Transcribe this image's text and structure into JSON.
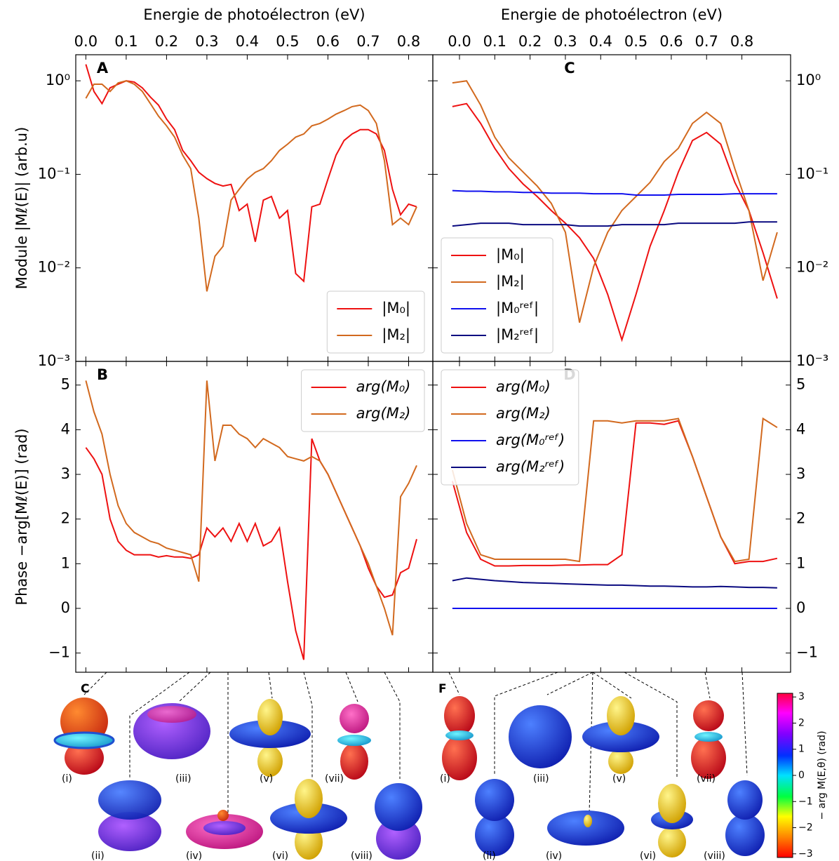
{
  "chart_data": [
    {
      "type": "line",
      "panel_label": "A",
      "xlabel": "Energie de photoélectron (eV)",
      "ylabel": "Module  |Mℓ(E)| (arb.u)",
      "xlim": [
        -0.025,
        0.86
      ],
      "xticks": [
        {
          "value": 0,
          "label": "0.0"
        },
        0.1,
        0.2,
        0.3,
        0.4,
        0.5,
        0.6,
        0.7,
        0.8
      ],
      "yscale": "log",
      "ylim": [
        0.001,
        1.9
      ],
      "yticks": [
        {
          "value": 1,
          "label": "10⁰"
        },
        {
          "value": 0.1,
          "label": "10⁻¹"
        },
        {
          "value": 0.01,
          "label": "10⁻²"
        },
        {
          "value": 0.001,
          "label": "10⁻³"
        }
      ],
      "legend": "lower right",
      "x": [
        0,
        0.02,
        0.04,
        0.06,
        0.08,
        0.1,
        0.12,
        0.14,
        0.16,
        0.18,
        0.2,
        0.22,
        0.24,
        0.26,
        0.28,
        0.3,
        0.32,
        0.34,
        0.36,
        0.38,
        0.4,
        0.42,
        0.44,
        0.46,
        0.48,
        0.5,
        0.52,
        0.54,
        0.56,
        0.58,
        0.6,
        0.62,
        0.64,
        0.66,
        0.68,
        0.7,
        0.72,
        0.74,
        0.76,
        0.78,
        0.8,
        0.82
      ],
      "series": [
        {
          "name": "|M₀|",
          "color": "#ee1111",
          "values": [
            1.5,
            0.77,
            0.57,
            0.84,
            0.92,
            1.0,
            0.97,
            0.84,
            0.67,
            0.55,
            0.39,
            0.3,
            0.18,
            0.14,
            0.105,
            0.09,
            0.08,
            0.075,
            0.078,
            0.041,
            0.048,
            0.019,
            0.053,
            0.058,
            0.034,
            0.041,
            0.0087,
            0.0072,
            0.045,
            0.048,
            0.089,
            0.16,
            0.23,
            0.27,
            0.3,
            0.3,
            0.27,
            0.18,
            0.069,
            0.037,
            0.048,
            0.045
          ]
        },
        {
          "name": "|M₂|",
          "color": "#d2691e",
          "values": [
            0.65,
            0.92,
            0.92,
            0.77,
            0.95,
            1.0,
            0.92,
            0.77,
            0.57,
            0.42,
            0.33,
            0.25,
            0.16,
            0.115,
            0.034,
            0.0056,
            0.0133,
            0.017,
            0.053,
            0.069,
            0.089,
            0.105,
            0.115,
            0.14,
            0.18,
            0.21,
            0.25,
            0.27,
            0.33,
            0.35,
            0.39,
            0.44,
            0.48,
            0.53,
            0.55,
            0.48,
            0.35,
            0.14,
            0.029,
            0.034,
            0.029,
            0.045
          ]
        }
      ]
    },
    {
      "type": "line",
      "panel_label": "B",
      "ylabel": "Phase  −arg[Mℓ(E)] (rad)",
      "xlim": [
        -0.025,
        0.86
      ],
      "xticks": [
        0,
        0.1,
        0.2,
        0.3,
        0.4,
        0.5,
        0.6,
        0.7,
        0.8
      ],
      "ylim": [
        -1.43,
        5.53
      ],
      "yticks": [
        {
          "value": -1,
          "label": "−1"
        },
        0,
        1,
        2,
        3,
        4,
        5
      ],
      "legend": "upper right",
      "x": [
        0,
        0.02,
        0.04,
        0.06,
        0.08,
        0.1,
        0.12,
        0.14,
        0.16,
        0.18,
        0.2,
        0.22,
        0.24,
        0.26,
        0.28,
        0.3,
        0.32,
        0.34,
        0.36,
        0.38,
        0.4,
        0.42,
        0.44,
        0.46,
        0.48,
        0.5,
        0.52,
        0.54,
        0.56,
        0.58,
        0.6,
        0.62,
        0.64,
        0.66,
        0.68,
        0.7,
        0.72,
        0.74,
        0.76,
        0.78,
        0.8,
        0.82
      ],
      "series": [
        {
          "name": "arg(M₀)",
          "color": "#ee1111",
          "values": [
            3.6,
            3.35,
            3.0,
            2.0,
            1.5,
            1.3,
            1.2,
            1.2,
            1.2,
            1.15,
            1.18,
            1.15,
            1.15,
            1.12,
            1.2,
            1.8,
            1.6,
            1.8,
            1.5,
            1.9,
            1.5,
            1.9,
            1.4,
            1.5,
            1.8,
            0.6,
            -0.5,
            -1.15,
            3.8,
            3.3,
            3.0,
            2.6,
            2.2,
            1.8,
            1.4,
            0.9,
            0.5,
            0.25,
            0.3,
            0.8,
            0.9,
            1.55
          ]
        },
        {
          "name": "arg(M₂)",
          "color": "#d2691e",
          "values": [
            5.1,
            4.4,
            3.9,
            3.0,
            2.3,
            1.9,
            1.7,
            1.6,
            1.5,
            1.45,
            1.35,
            1.3,
            1.25,
            1.2,
            0.6,
            5.1,
            3.3,
            4.1,
            4.1,
            3.9,
            3.8,
            3.6,
            3.8,
            3.7,
            3.6,
            3.4,
            3.35,
            3.3,
            3.4,
            3.3,
            3.0,
            2.6,
            2.2,
            1.8,
            1.4,
            1.0,
            0.5,
            0.0,
            -0.6,
            2.5,
            2.8,
            3.2
          ]
        }
      ]
    },
    {
      "type": "line",
      "panel_label": "C",
      "xlabel": "Energie de photoélectron (eV)",
      "xlim": [
        -0.0755,
        0.938
      ],
      "xticks": [
        {
          "value": 0,
          "label": "0.0"
        },
        0.1,
        0.2,
        0.3,
        0.4,
        0.5,
        0.6,
        0.7,
        0.8
      ],
      "yscale": "log",
      "ylim": [
        0.001,
        1.9
      ],
      "yticks": [
        {
          "value": 1,
          "label": "10⁰"
        },
        {
          "value": 0.1,
          "label": "10⁻¹"
        },
        {
          "value": 0.01,
          "label": "10⁻²"
        },
        {
          "value": 0.001,
          "label": "10⁻³"
        }
      ],
      "legend": "lower left",
      "x": [
        -0.02,
        0.02,
        0.06,
        0.1,
        0.14,
        0.18,
        0.22,
        0.26,
        0.3,
        0.34,
        0.38,
        0.42,
        0.46,
        0.5,
        0.54,
        0.58,
        0.62,
        0.66,
        0.7,
        0.74,
        0.78,
        0.82,
        0.86,
        0.9
      ],
      "series": [
        {
          "name": "|M₀|",
          "color": "#ee1111",
          "values": [
            0.53,
            0.57,
            0.35,
            0.19,
            0.115,
            0.079,
            0.058,
            0.041,
            0.03,
            0.021,
            0.0126,
            0.0052,
            0.0017,
            0.0052,
            0.017,
            0.041,
            0.106,
            0.23,
            0.28,
            0.21,
            0.082,
            0.041,
            0.0145,
            0.0047
          ]
        },
        {
          "name": "|M₂|",
          "color": "#d2691e",
          "values": [
            0.95,
            1.0,
            0.55,
            0.25,
            0.15,
            0.106,
            0.075,
            0.049,
            0.024,
            0.0026,
            0.0103,
            0.024,
            0.041,
            0.058,
            0.082,
            0.137,
            0.19,
            0.35,
            0.46,
            0.35,
            0.115,
            0.041,
            0.0073,
            0.024
          ]
        },
        {
          "name": "|M₀ʳᵉᶠ|",
          "color": "#1010ee",
          "values": [
            0.067,
            0.066,
            0.066,
            0.065,
            0.065,
            0.064,
            0.064,
            0.063,
            0.063,
            0.063,
            0.062,
            0.062,
            0.062,
            0.06,
            0.06,
            0.06,
            0.061,
            0.061,
            0.061,
            0.061,
            0.062,
            0.062,
            0.062,
            0.062
          ]
        },
        {
          "name": "|M₂ʳᵉᶠ|",
          "color": "#0a0a80",
          "values": [
            0.028,
            0.029,
            0.03,
            0.03,
            0.03,
            0.029,
            0.029,
            0.029,
            0.029,
            0.028,
            0.028,
            0.028,
            0.029,
            0.029,
            0.029,
            0.029,
            0.03,
            0.03,
            0.03,
            0.03,
            0.03,
            0.031,
            0.031,
            0.031
          ]
        }
      ]
    },
    {
      "type": "line",
      "panel_label": "D",
      "xlim": [
        -0.0755,
        0.938
      ],
      "xticks": [
        0,
        0.1,
        0.2,
        0.3,
        0.4,
        0.5,
        0.6,
        0.7,
        0.8
      ],
      "ylim": [
        -1.43,
        5.53
      ],
      "yticks": [
        {
          "value": -1,
          "label": "−1"
        },
        0,
        1,
        2,
        3,
        4,
        5
      ],
      "legend": "upper left",
      "x": [
        -0.02,
        0.02,
        0.06,
        0.1,
        0.14,
        0.18,
        0.22,
        0.26,
        0.3,
        0.34,
        0.38,
        0.42,
        0.46,
        0.5,
        0.54,
        0.58,
        0.62,
        0.66,
        0.7,
        0.74,
        0.78,
        0.82,
        0.86,
        0.9
      ],
      "series": [
        {
          "name": "arg(M₀)",
          "color": "#ee1111",
          "values": [
            2.85,
            1.7,
            1.1,
            0.95,
            0.95,
            0.96,
            0.96,
            0.96,
            0.97,
            0.97,
            0.98,
            0.98,
            1.2,
            4.15,
            4.15,
            4.12,
            4.2,
            3.4,
            2.5,
            1.6,
            1.0,
            1.05,
            1.05,
            1.12
          ]
        },
        {
          "name": "arg(M₂)",
          "color": "#d2691e",
          "values": [
            3.1,
            1.9,
            1.2,
            1.1,
            1.1,
            1.1,
            1.1,
            1.1,
            1.1,
            1.05,
            4.2,
            4.2,
            4.15,
            4.2,
            4.2,
            4.2,
            4.25,
            3.4,
            2.5,
            1.6,
            1.05,
            1.1,
            4.25,
            4.05
          ]
        },
        {
          "name": "arg(M₀ʳᵉᶠ)",
          "color": "#1010ee",
          "values": [
            0,
            0,
            0,
            0,
            0,
            0,
            0,
            0,
            0,
            0,
            0,
            0,
            0,
            0,
            0,
            0,
            0,
            0,
            0,
            0,
            0,
            0,
            0,
            0
          ]
        },
        {
          "name": "arg(M₂ʳᵉᶠ)",
          "color": "#0a0a80",
          "values": [
            0.62,
            0.68,
            0.65,
            0.62,
            0.6,
            0.58,
            0.57,
            0.56,
            0.55,
            0.54,
            0.53,
            0.52,
            0.52,
            0.51,
            0.5,
            0.5,
            0.49,
            0.48,
            0.48,
            0.49,
            0.48,
            0.47,
            0.47,
            0.46
          ]
        }
      ]
    }
  ],
  "insets": [
    {
      "panel_label": "C",
      "labels": [
        "(i)",
        "(ii)",
        "(iii)",
        "(iv)",
        "(v)",
        "(vi)",
        "(vii)",
        "(viii)"
      ]
    },
    {
      "panel_label": "F",
      "labels": [
        "(i)",
        "(ii)",
        "(iii)",
        "(iv)",
        "(v)",
        "(vi)",
        "(vii)",
        "(viii)"
      ]
    }
  ],
  "colorbar": {
    "label": "− arg M(E,θ) (rad)",
    "ylim": [
      -3.14,
      3.14
    ],
    "yticks": [
      {
        "value": -3,
        "label": "−3"
      },
      {
        "value": -2,
        "label": "−2"
      },
      {
        "value": -1,
        "label": "−1"
      },
      0,
      1,
      2,
      3
    ]
  }
}
